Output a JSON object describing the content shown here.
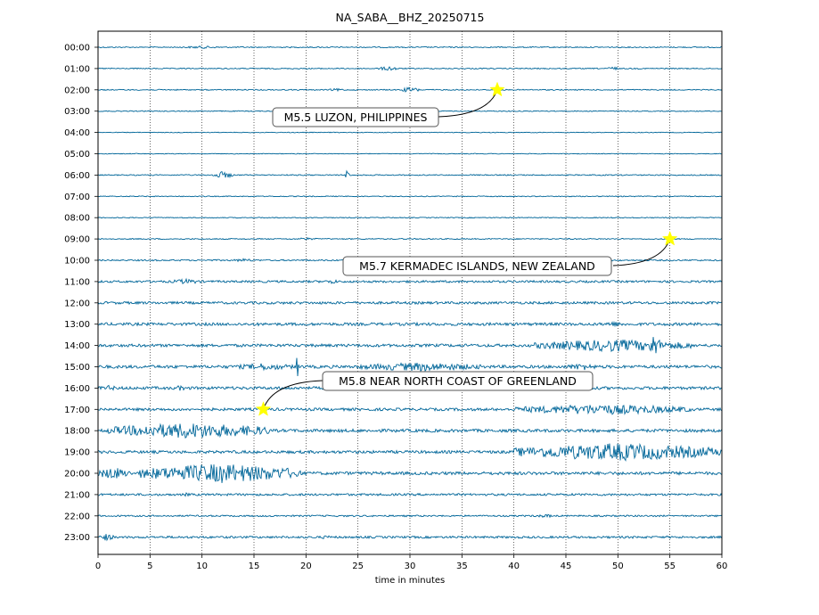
{
  "chart_data": {
    "type": "line",
    "title": "NA_SABA__BHZ_20250715",
    "xlabel": "time in minutes",
    "ylabel": "",
    "xlim": [
      0,
      60
    ],
    "x_ticks": [
      0,
      5,
      10,
      15,
      20,
      25,
      30,
      35,
      40,
      45,
      50,
      55,
      60
    ],
    "grid": "vertical dotted",
    "trace_color": "#006699",
    "rows": [
      "00:00",
      "01:00",
      "02:00",
      "03:00",
      "04:00",
      "05:00",
      "06:00",
      "07:00",
      "08:00",
      "09:00",
      "10:00",
      "11:00",
      "12:00",
      "13:00",
      "14:00",
      "15:00",
      "16:00",
      "17:00",
      "18:00",
      "19:00",
      "20:00",
      "21:00",
      "22:00",
      "23:00"
    ],
    "noise_levels": [
      0.6,
      0.6,
      0.6,
      0.5,
      0.4,
      0.4,
      0.6,
      0.5,
      0.5,
      0.6,
      0.8,
      1.2,
      1.4,
      1.6,
      1.6,
      1.7,
      1.6,
      1.5,
      1.7,
      1.6,
      1.7,
      1.2,
      0.9,
      1.2
    ],
    "bursts": [
      {
        "row": 0,
        "start": 8,
        "end": 12,
        "amp": 1.5
      },
      {
        "row": 1,
        "start": 27,
        "end": 29,
        "amp": 2.5
      },
      {
        "row": 1,
        "start": 49,
        "end": 50,
        "amp": 2.5
      },
      {
        "row": 2,
        "start": 29,
        "end": 31,
        "amp": 3
      },
      {
        "row": 2,
        "start": 22,
        "end": 24,
        "amp": 1.5
      },
      {
        "row": 6,
        "start": 11,
        "end": 13,
        "amp": 4
      },
      {
        "row": 6,
        "start": 23.8,
        "end": 24.3,
        "amp": 10
      },
      {
        "row": 9,
        "start": 19,
        "end": 21,
        "amp": 1.5
      },
      {
        "row": 10,
        "start": 13,
        "end": 15,
        "amp": 2
      },
      {
        "row": 11,
        "start": 7,
        "end": 10,
        "amp": 3
      },
      {
        "row": 11,
        "start": 22,
        "end": 23,
        "amp": 3
      },
      {
        "row": 13,
        "start": 48,
        "end": 51,
        "amp": 3
      },
      {
        "row": 14,
        "start": 42,
        "end": 57,
        "amp": 7
      },
      {
        "row": 14,
        "start": 53,
        "end": 54,
        "amp": 14
      },
      {
        "row": 15,
        "start": 13,
        "end": 19,
        "amp": 4
      },
      {
        "row": 15,
        "start": 19,
        "end": 19.3,
        "amp": 14
      },
      {
        "row": 15,
        "start": 25,
        "end": 37,
        "amp": 5
      },
      {
        "row": 15,
        "start": 45,
        "end": 48,
        "amp": 4
      },
      {
        "row": 16,
        "start": 0,
        "end": 2,
        "amp": 3
      },
      {
        "row": 16,
        "start": 7,
        "end": 9,
        "amp": 3
      },
      {
        "row": 17,
        "start": 40,
        "end": 57,
        "amp": 6
      },
      {
        "row": 18,
        "start": 1,
        "end": 16.5,
        "amp": 9
      },
      {
        "row": 19,
        "start": 40,
        "end": 60,
        "amp": 10
      },
      {
        "row": 20,
        "start": 0,
        "end": 3,
        "amp": 7
      },
      {
        "row": 20,
        "start": 4,
        "end": 19.5,
        "amp": 11
      },
      {
        "row": 21,
        "start": 8,
        "end": 9,
        "amp": 2
      },
      {
        "row": 22,
        "start": 42,
        "end": 44,
        "amp": 2
      },
      {
        "row": 23,
        "start": 0,
        "end": 1.5,
        "amp": 4
      },
      {
        "row": 23,
        "start": 21,
        "end": 23,
        "amp": 2
      }
    ],
    "events": [
      {
        "label": "M5.5 LUZON, PHILIPPINES",
        "row": 2,
        "minute": 38.4
      },
      {
        "label": "M5.7 KERMADEC ISLANDS, NEW ZEALAND",
        "row": 9,
        "minute": 55.0
      },
      {
        "label": "M5.8 NEAR NORTH COAST OF GREENLAND",
        "row": 17,
        "minute": 15.9
      }
    ],
    "marker_color": "#ffff00"
  }
}
